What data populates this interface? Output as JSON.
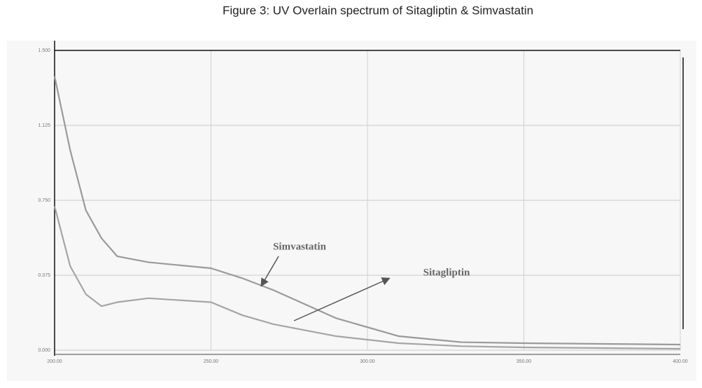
{
  "chart_data": {
    "type": "line",
    "title": "Figure 3: UV Overlain spectrum of Sitagliptin & Simvastatin",
    "x": [
      200,
      205,
      210,
      215,
      220,
      230,
      250,
      260,
      270,
      290,
      310,
      330,
      350,
      400
    ],
    "series": [
      {
        "name": "Simvastatin",
        "color": "#9a9a9a",
        "values": [
          1.37,
          1.0,
          0.7,
          0.56,
          0.47,
          0.44,
          0.41,
          0.36,
          0.3,
          0.16,
          0.07,
          0.04,
          0.035,
          0.028
        ]
      },
      {
        "name": "Sitagliptin",
        "color": "#a5a5a5",
        "values": [
          0.72,
          0.42,
          0.28,
          0.22,
          0.24,
          0.26,
          0.24,
          0.175,
          0.13,
          0.07,
          0.035,
          0.02,
          0.014,
          0.007
        ]
      }
    ],
    "xlim": [
      200,
      400
    ],
    "xticks": [
      {
        "value": 200,
        "label": "200.00"
      },
      {
        "value": 250,
        "label": "250.00"
      },
      {
        "value": 300,
        "label": "300.00"
      },
      {
        "value": 350,
        "label": "350.00"
      },
      {
        "value": 400,
        "label": "400.00"
      }
    ],
    "ylim": [
      0,
      1.5
    ],
    "yticks": [
      {
        "value": 0,
        "label": "0.000"
      },
      {
        "value": 0.375,
        "label": "0.375"
      },
      {
        "value": 0.75,
        "label": "0.750"
      },
      {
        "value": 1.125,
        "label": "1.125"
      },
      {
        "value": 1.5,
        "label": "1.500"
      }
    ],
    "grid": true
  }
}
